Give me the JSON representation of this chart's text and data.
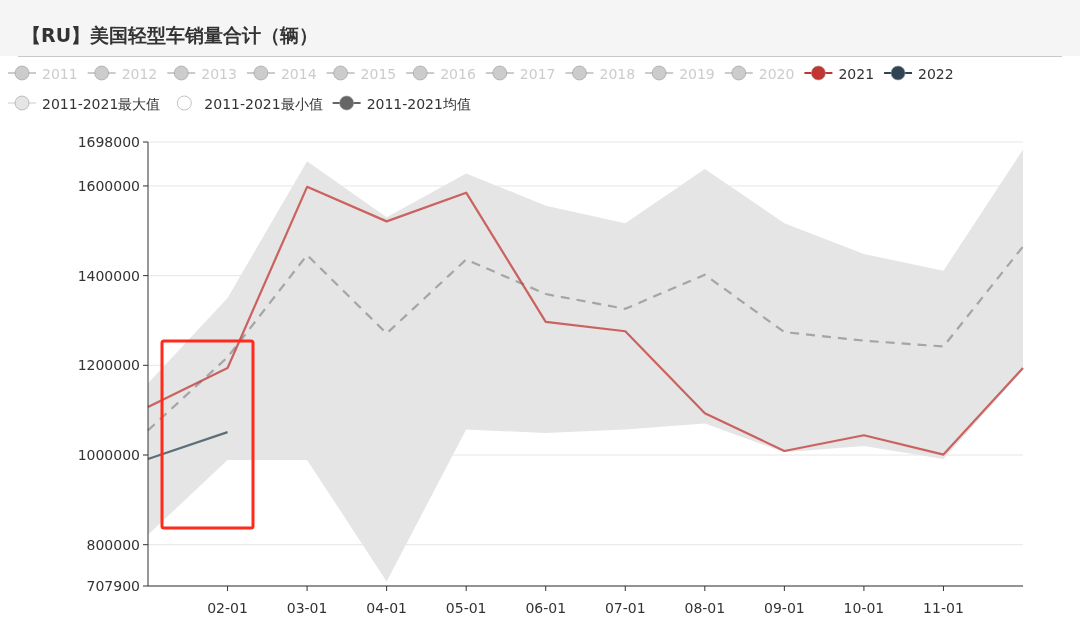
{
  "chart_data": {
    "type": "line",
    "title": "【RU】美国轻型车销量合计（辆）",
    "categories": [
      null,
      "02-01",
      "03-01",
      "04-01",
      "05-01",
      "06-01",
      "07-01",
      "08-01",
      "09-01",
      "10-01",
      "11-01",
      null
    ],
    "ylim": [
      707900,
      1698000
    ],
    "yticks": [
      707900,
      800000,
      1000000,
      1200000,
      1400000,
      1600000,
      1698000
    ],
    "grid": "y",
    "legend": "top",
    "series": [
      {
        "name": "2011",
        "color": "#cccccc",
        "values": [
          null,
          null,
          null,
          null,
          null,
          null,
          null,
          null,
          null,
          null,
          null,
          null
        ]
      },
      {
        "name": "2012",
        "color": "#cccccc",
        "values": [
          null,
          null,
          null,
          null,
          null,
          null,
          null,
          null,
          null,
          null,
          null,
          null
        ]
      },
      {
        "name": "2013",
        "color": "#cccccc",
        "values": [
          null,
          null,
          null,
          null,
          null,
          null,
          null,
          null,
          null,
          null,
          null,
          null
        ]
      },
      {
        "name": "2014",
        "color": "#cccccc",
        "values": [
          null,
          null,
          null,
          null,
          null,
          null,
          null,
          null,
          null,
          null,
          null,
          null
        ]
      },
      {
        "name": "2015",
        "color": "#cccccc",
        "values": [
          null,
          null,
          null,
          null,
          null,
          null,
          null,
          null,
          null,
          null,
          null,
          null
        ]
      },
      {
        "name": "2016",
        "color": "#cccccc",
        "values": [
          null,
          null,
          null,
          null,
          null,
          null,
          null,
          null,
          null,
          null,
          null,
          null
        ]
      },
      {
        "name": "2017",
        "color": "#cccccc",
        "values": [
          null,
          null,
          null,
          null,
          null,
          null,
          null,
          null,
          null,
          null,
          null,
          null
        ]
      },
      {
        "name": "2018",
        "color": "#cccccc",
        "values": [
          null,
          null,
          null,
          null,
          null,
          null,
          null,
          null,
          null,
          null,
          null,
          null
        ]
      },
      {
        "name": "2019",
        "color": "#cccccc",
        "values": [
          null,
          null,
          null,
          null,
          null,
          null,
          null,
          null,
          null,
          null,
          null,
          null
        ]
      },
      {
        "name": "2020",
        "color": "#cccccc",
        "values": [
          null,
          null,
          null,
          null,
          null,
          null,
          null,
          null,
          null,
          null,
          null,
          null
        ]
      },
      {
        "name": "2021",
        "color": "#c23531",
        "values": [
          1107000,
          1194000,
          1598000,
          1521000,
          1585000,
          1297000,
          1276000,
          1093000,
          1009000,
          1044000,
          1001000,
          1194000
        ]
      },
      {
        "name": "2022",
        "color": "#2f4554",
        "values": [
          991000,
          1051000,
          null,
          null,
          null,
          null,
          null,
          null,
          null,
          null,
          null,
          null
        ]
      },
      {
        "name": "2011-2021最大值",
        "type": "area",
        "color": "#e5e5e5",
        "values": [
          1160000,
          1350000,
          1655000,
          1530000,
          1628000,
          1556000,
          1517000,
          1638000,
          1517000,
          1448000,
          1411000,
          1681000
        ]
      },
      {
        "name": "2011-2021最小值",
        "type": "area",
        "color": "#ffffff",
        "values": [
          822000,
          989000,
          989000,
          718000,
          1057000,
          1049000,
          1057000,
          1070000,
          1006000,
          1020000,
          991000,
          1190000
        ]
      },
      {
        "name": "2011-2021均值",
        "color": "#666666",
        "line_style": "dashed",
        "values": [
          1055000,
          1218000,
          1446000,
          1271000,
          1436000,
          1359000,
          1326000,
          1402000,
          1274000,
          1255000,
          1242000,
          1465000
        ]
      }
    ]
  }
}
